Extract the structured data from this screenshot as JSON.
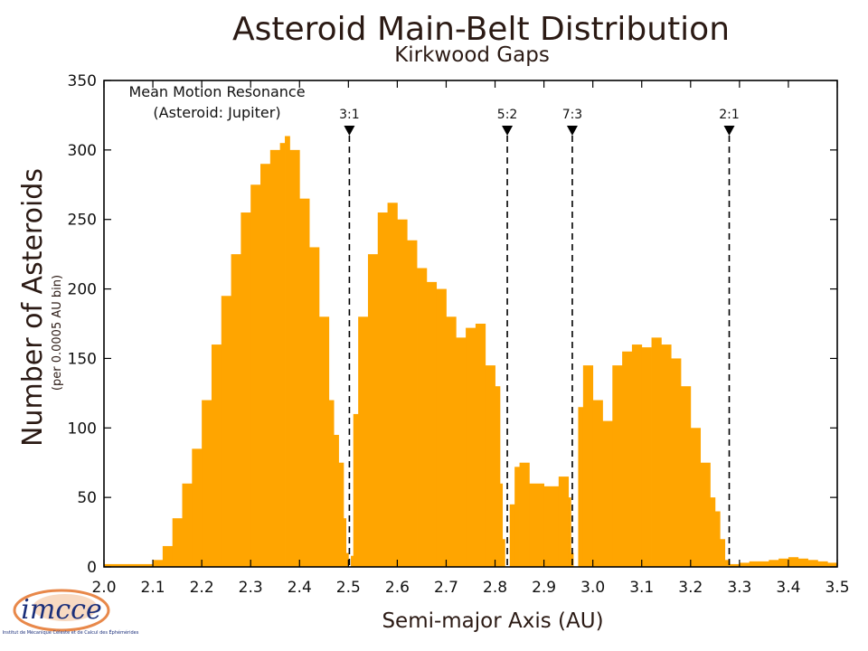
{
  "chart_data": {
    "type": "bar",
    "title": "Asteroid Main-Belt Distribution",
    "subtitle": "Kirkwood Gaps",
    "xlabel": "Semi-major Axis (AU)",
    "ylabel": "Number of Asteroids",
    "ylabel_sub": "(per 0.0005 AU bin)",
    "xlim": [
      2.0,
      3.5
    ],
    "ylim": [
      0,
      350
    ],
    "xticks": [
      2.0,
      2.1,
      2.2,
      2.3,
      2.4,
      2.5,
      2.6,
      2.7,
      2.8,
      2.9,
      3.0,
      3.1,
      3.2,
      3.3,
      3.4,
      3.5
    ],
    "xtick_labels": [
      "2.0",
      "2.1",
      "2.2",
      "2.3",
      "2.4",
      "2.5",
      "2.6",
      "2.7",
      "2.8",
      "2.9",
      "3.0",
      "3.1",
      "3.2",
      "3.3",
      "3.4",
      "3.5"
    ],
    "yticks": [
      0,
      50,
      100,
      150,
      200,
      250,
      300,
      350
    ],
    "ytick_labels": [
      "0",
      "50",
      "100",
      "150",
      "200",
      "250",
      "300",
      "350"
    ],
    "bar_color": "#ffa500",
    "grid": false,
    "annotation": {
      "line1": "Mean Motion Resonance",
      "line2": "(Asteroid: Jupiter)"
    },
    "resonances": [
      {
        "label": "3:1",
        "x": 2.502
      },
      {
        "label": "5:2",
        "x": 2.825
      },
      {
        "label": "7:3",
        "x": 2.958
      },
      {
        "label": "2:1",
        "x": 3.279
      }
    ],
    "series": [
      {
        "x": [
          2.0,
          2.05,
          2.1,
          2.12,
          2.14,
          2.16,
          2.18,
          2.2,
          2.22,
          2.24,
          2.26,
          2.28,
          2.3,
          2.32,
          2.34,
          2.36,
          2.37,
          2.38,
          2.4,
          2.42,
          2.44,
          2.46,
          2.47,
          2.48,
          2.49,
          2.495,
          2.5,
          2.505,
          2.51,
          2.52,
          2.54,
          2.56,
          2.58,
          2.6,
          2.62,
          2.64,
          2.66,
          2.68,
          2.7,
          2.72,
          2.74,
          2.76,
          2.78,
          2.8,
          2.81,
          2.815,
          2.82,
          2.83,
          2.84,
          2.85,
          2.87,
          2.9,
          2.93,
          2.95,
          2.955,
          2.96,
          2.97,
          2.98,
          3.0,
          3.02,
          3.04,
          3.06,
          3.08,
          3.1,
          3.12,
          3.14,
          3.16,
          3.18,
          3.2,
          3.22,
          3.24,
          3.25,
          3.26,
          3.27,
          3.28,
          3.3,
          3.32,
          3.34,
          3.36,
          3.38,
          3.4,
          3.42,
          3.44,
          3.46,
          3.48,
          3.5
        ],
        "values": [
          2,
          2,
          5,
          15,
          35,
          60,
          85,
          120,
          160,
          195,
          225,
          255,
          275,
          290,
          300,
          305,
          310,
          300,
          265,
          230,
          180,
          120,
          95,
          75,
          35,
          10,
          0,
          8,
          110,
          180,
          225,
          255,
          262,
          250,
          235,
          215,
          205,
          200,
          180,
          165,
          172,
          175,
          145,
          130,
          60,
          20,
          0,
          45,
          72,
          75,
          60,
          58,
          65,
          50,
          10,
          0,
          115,
          145,
          120,
          105,
          145,
          155,
          160,
          158,
          165,
          160,
          150,
          130,
          100,
          75,
          50,
          40,
          20,
          5,
          2,
          3,
          4,
          4,
          5,
          6,
          7,
          6,
          5,
          4,
          3,
          3
        ]
      }
    ]
  },
  "logo": {
    "text": "imcce",
    "subtext": "Institut de Mécanique Céleste et de Calcul des Éphémérides"
  }
}
